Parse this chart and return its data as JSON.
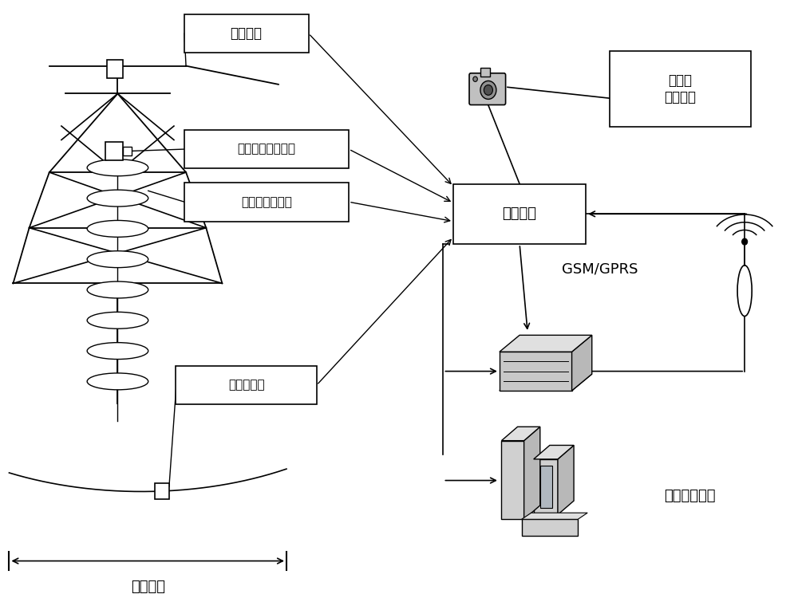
{
  "bg_color": "#ffffff",
  "labels": {
    "simulated_wire": "模拟导线",
    "tension_angle": "拉力及角度传感器",
    "leakage_current": "泄漏电流传感器",
    "angle_sensor": "角度传感器",
    "monitor_terminal": "监测终端",
    "micro_weather": "微气象\n传感器群",
    "gsm_gprs": "GSM/GPRS",
    "monitor_center": "监控中心主站",
    "vertical_span": "垂直档距"
  },
  "figsize": [
    10.0,
    7.5
  ],
  "dpi": 100
}
